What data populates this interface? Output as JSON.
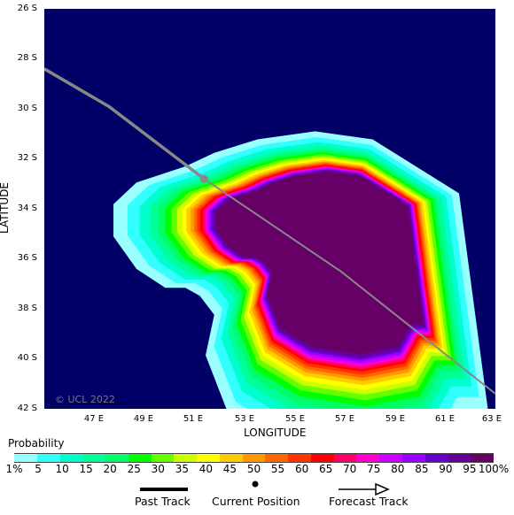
{
  "map": {
    "copyright": "© UCL 2022",
    "x_axis_label": "LONGITUDE",
    "y_axis_label": "LATITUDE",
    "lon_range": [
      45.5,
      63
    ],
    "lat_range": [
      26,
      42
    ],
    "lat_ticks": [
      "26 S",
      "28 S",
      "30 S",
      "32 S",
      "34 S",
      "36 S",
      "38 S",
      "40 S",
      "42 S"
    ],
    "lon_ticks": [
      "47 E",
      "49 E",
      "51 E",
      "53 E",
      "55 E",
      "57 E",
      "59 E",
      "61 E",
      "63 E"
    ],
    "current_position": {
      "lon": 51.7,
      "lat": 32.8
    },
    "past_track": [
      [
        45.5,
        28.4
      ],
      [
        48.0,
        29.9
      ],
      [
        51.7,
        32.8
      ]
    ],
    "forecast_track": [
      [
        51.7,
        32.8
      ],
      [
        57.0,
        36.5
      ],
      [
        63.0,
        41.4
      ]
    ],
    "background_color": "#000066",
    "track_color": "#888888"
  },
  "legend": {
    "title": "Probability",
    "labels": [
      "1%",
      "5",
      "10",
      "15",
      "20",
      "25",
      "30",
      "35",
      "40",
      "45",
      "50",
      "55",
      "60",
      "65",
      "70",
      "75",
      "80",
      "85",
      "90",
      "95",
      "100%"
    ],
    "colors": [
      "#99ffff",
      "#33ffff",
      "#00ffcc",
      "#00ff99",
      "#00ff66",
      "#00ff00",
      "#66ff00",
      "#ccff00",
      "#ffff00",
      "#ffcc00",
      "#ff9900",
      "#ff6600",
      "#ff3300",
      "#ff0000",
      "#ff0066",
      "#ff00cc",
      "#cc00ff",
      "#9900ff",
      "#6600cc",
      "#660099",
      "#660066"
    ],
    "past_track_label": "Past Track",
    "current_position_label": "Current Position",
    "forecast_track_label": "Forecast Track"
  }
}
